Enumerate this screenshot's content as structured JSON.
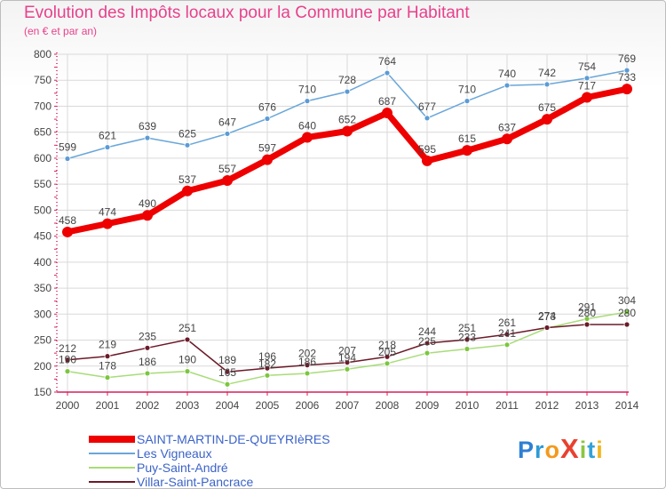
{
  "title": "Evolution des Impôts locaux pour la Commune par Habitant",
  "subtitle": "(en € et par an)",
  "colors": {
    "title": "#e8418c",
    "axis": "#d81f5a",
    "grid": "#d9d9d9",
    "label": "#444444",
    "legend_text": "#3b63c8"
  },
  "logo": {
    "text": "ProXiti",
    "letters": [
      "P",
      "r",
      "o",
      "X",
      "i",
      "t",
      "i"
    ],
    "letter_colors": [
      "#2e7fd2",
      "#2e9ad6",
      "#f39a1c",
      "#e8412f",
      "#8cc63f",
      "#33a1d8",
      "#f3b71c"
    ]
  },
  "chart_data": {
    "type": "line",
    "title": "Evolution des Impôts locaux pour la Commune par Habitant",
    "subtitle": "(en € et par an)",
    "xlabel": "",
    "ylabel": "",
    "ylim": [
      150,
      800
    ],
    "yticks": [
      150,
      200,
      250,
      300,
      350,
      400,
      450,
      500,
      550,
      600,
      650,
      700,
      750,
      800
    ],
    "x": [
      2000,
      2001,
      2002,
      2003,
      2004,
      2005,
      2006,
      2007,
      2008,
      2009,
      2010,
      2011,
      2012,
      2013,
      2014
    ],
    "grid": true,
    "legend_position": "bottom-left",
    "series": [
      {
        "name": "SAINT-MARTIN-DE-QUEYRIèRES",
        "color": "#ee0000",
        "marker": "#ee0000",
        "bold": true,
        "values": [
          458,
          474,
          490,
          537,
          557,
          597,
          640,
          652,
          687,
          595,
          615,
          637,
          675,
          717,
          733
        ],
        "labels": [
          "458",
          "474",
          "490",
          "537",
          "557",
          "597",
          "640",
          "652",
          "687",
          "595",
          "615",
          "637",
          "675",
          "717",
          "733"
        ]
      },
      {
        "name": "Les Vigneaux",
        "color": "#6aa6d8",
        "marker": "#5b9bd5",
        "bold": false,
        "values": [
          599,
          621,
          639,
          625,
          647,
          676,
          710,
          728,
          764,
          677,
          710,
          740,
          742,
          754,
          769
        ],
        "labels": [
          "599",
          "621",
          "639",
          "625",
          "647",
          "676",
          "710",
          "728",
          "764",
          "677",
          "710",
          "740",
          "742",
          "754",
          "769"
        ]
      },
      {
        "name": "Puy-Saint-André",
        "color": "#a8dc78",
        "marker": "#7cc63f",
        "bold": false,
        "values": [
          190,
          178,
          186,
          190,
          165,
          182,
          186,
          194,
          205,
          225,
          233,
          241,
          273,
          291,
          304
        ],
        "labels": [
          "190",
          "178",
          "186",
          "190",
          "165",
          "182",
          "186",
          "194",
          "205",
          "225",
          "233",
          "241",
          "273",
          "291",
          "304"
        ]
      },
      {
        "name": "Villar-Saint-Pancrace",
        "color": "#6b1a28",
        "marker": "#6b1a28",
        "bold": false,
        "values": [
          212,
          219,
          235,
          251,
          189,
          196,
          202,
          207,
          218,
          244,
          251,
          261,
          274,
          280,
          280
        ],
        "labels": [
          "212",
          "219",
          "235",
          "251",
          "189",
          "196",
          "202",
          "207",
          "218",
          "244",
          "251",
          "261",
          "274",
          "280",
          "280"
        ]
      }
    ]
  }
}
